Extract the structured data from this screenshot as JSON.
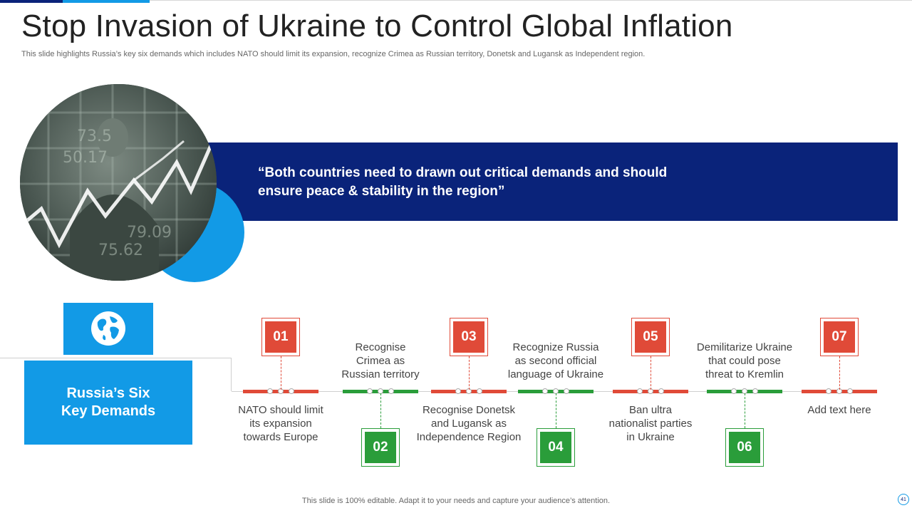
{
  "title": "Stop Invasion of Ukraine to Control Global Inflation",
  "subtitle": "This slide highlights Russia’s key six demands which includes NATO should limit its expansion, recognize Crimea as Russian territory, Donetsk and Lugansk as Independent region.",
  "quote": {
    "line1": "“Both countries need to drawn out critical demands and should",
    "line2": "ensure peace & stability in the region”"
  },
  "photo_icon": "stock-market-photo",
  "globe_icon": "globe-icon",
  "demands_box": {
    "line1": "Russia’s Six",
    "line2": "Key Demands"
  },
  "steps": [
    {
      "num": "01",
      "lines": [
        "NATO should limit",
        "its expansion",
        "towards Europe"
      ],
      "color": "#e04a38"
    },
    {
      "num": "02",
      "lines": [
        "Recognise",
        "Crimea as",
        "Russian territory"
      ],
      "color": "#2a9d3a"
    },
    {
      "num": "03",
      "lines": [
        "Recognise Donetsk",
        "and Lugansk as",
        "Independence Region"
      ],
      "color": "#e04a38"
    },
    {
      "num": "04",
      "lines": [
        "Recognize Russia",
        "as second official",
        "language of Ukraine"
      ],
      "color": "#2a9d3a"
    },
    {
      "num": "05",
      "lines": [
        "Ban ultra",
        "nationalist parties",
        "in Ukraine"
      ],
      "color": "#e04a38"
    },
    {
      "num": "06",
      "lines": [
        "Demilitarize Ukraine",
        "that could pose",
        "threat to Kremlin"
      ],
      "color": "#2a9d3a"
    },
    {
      "num": "07",
      "lines": [
        "Add text here"
      ],
      "color": "#e04a38"
    }
  ],
  "footer": "This slide is 100% editable. Adapt it to your needs and capture your audience’s attention.",
  "page_number": "41",
  "colors": {
    "navy": "#0a237a",
    "blue": "#129ae6",
    "red": "#e04a38",
    "green": "#2a9d3a"
  }
}
